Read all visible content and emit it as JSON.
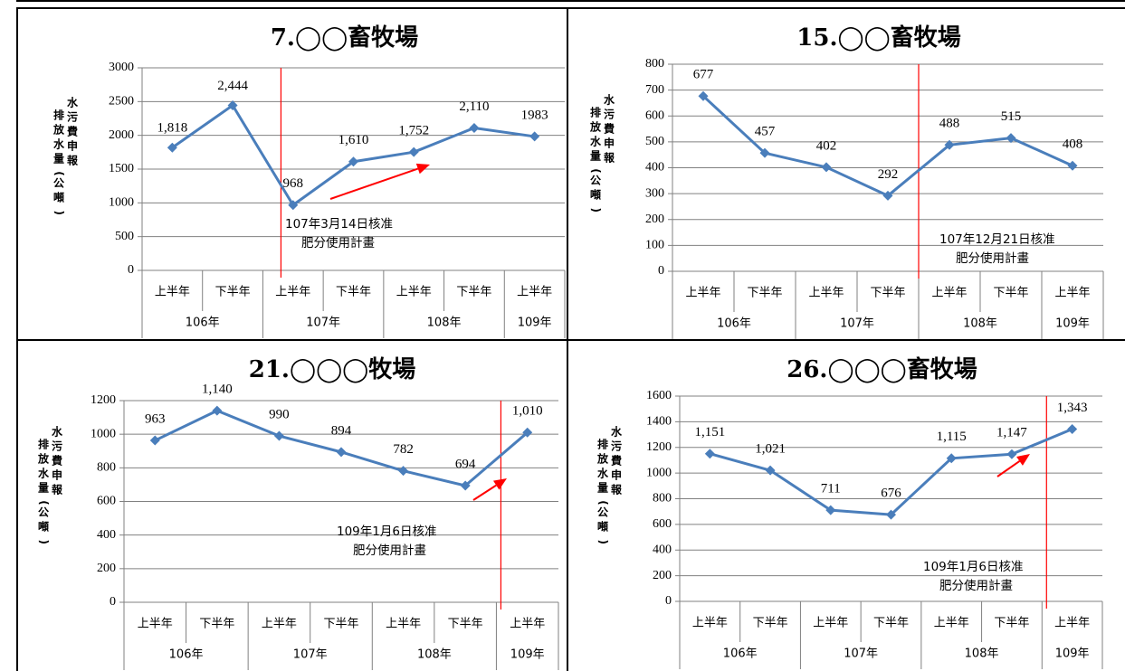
{
  "charts": [
    {
      "title": "7.◯◯畜牧場",
      "ylabel_left": "排放水量(公噸)",
      "ylabel_right": "水污費申報",
      "ylim": [
        0,
        3000
      ],
      "yticks": [
        0,
        500,
        1000,
        1500,
        2000,
        2500,
        3000
      ],
      "categories": [
        "上半年",
        "下半年",
        "上半年",
        "下半年",
        "上半年",
        "下半年",
        "上半年"
      ],
      "groups": [
        {
          "label": "106年",
          "span": 2
        },
        {
          "label": "107年",
          "span": 2
        },
        {
          "label": "108年",
          "span": 2
        },
        {
          "label": "109年",
          "span": 1
        }
      ],
      "values": [
        1818,
        2444,
        968,
        1610,
        1752,
        2110,
        1983
      ],
      "data_labels": [
        "1,818",
        "2,444",
        "968",
        "1,610",
        "1,752",
        "2,110",
        "1983"
      ],
      "annotation_line1": "107年3月14日核准",
      "annotation_line2": "肥分使用計畫"
    },
    {
      "title": "15.◯◯畜牧場",
      "ylabel_left": "排放水量(公噸)",
      "ylabel_right": "水污費申報",
      "ylim": [
        0,
        800
      ],
      "yticks": [
        0,
        100,
        200,
        300,
        400,
        500,
        600,
        700,
        800
      ],
      "categories": [
        "上半年",
        "下半年",
        "上半年",
        "下半年",
        "上半年",
        "下半年",
        "上半年"
      ],
      "groups": [
        {
          "label": "106年",
          "span": 2
        },
        {
          "label": "107年",
          "span": 2
        },
        {
          "label": "108年",
          "span": 2
        },
        {
          "label": "109年",
          "span": 1
        }
      ],
      "values": [
        677,
        457,
        402,
        292,
        488,
        515,
        408
      ],
      "data_labels": [
        "677",
        "457",
        "402",
        "292",
        "488",
        "515",
        "408"
      ],
      "annotation_line1": "107年12月21日核准",
      "annotation_line2": "肥分使用計畫"
    },
    {
      "title": "21.◯◯◯牧場",
      "ylabel_left": "排放水量(公噸)",
      "ylabel_right": "水污費申報",
      "ylim": [
        0,
        1200
      ],
      "yticks": [
        0,
        200,
        400,
        600,
        800,
        1000,
        1200
      ],
      "categories": [
        "上半年",
        "下半年",
        "上半年",
        "下半年",
        "上半年",
        "下半年",
        "上半年"
      ],
      "groups": [
        {
          "label": "106年",
          "span": 2
        },
        {
          "label": "107年",
          "span": 2
        },
        {
          "label": "108年",
          "span": 2
        },
        {
          "label": "109年",
          "span": 1
        }
      ],
      "values": [
        963,
        1140,
        990,
        894,
        782,
        694,
        1010
      ],
      "data_labels": [
        "963",
        "1,140",
        "990",
        "894",
        "782",
        "694",
        "1,010"
      ],
      "annotation_line1": "109年1月6日核准",
      "annotation_line2": "肥分使用計畫"
    },
    {
      "title": "26.◯◯◯畜牧場",
      "ylabel_left": "排放水量(公噸)",
      "ylabel_right": "水污費申報",
      "ylim": [
        0,
        1600
      ],
      "yticks": [
        0,
        200,
        400,
        600,
        800,
        1000,
        1200,
        1400,
        1600
      ],
      "categories": [
        "上半年",
        "下半年",
        "上半年",
        "下半年",
        "上半年",
        "下半年",
        "上半年"
      ],
      "groups": [
        {
          "label": "106年",
          "span": 2
        },
        {
          "label": "107年",
          "span": 2
        },
        {
          "label": "108年",
          "span": 2
        },
        {
          "label": "109年",
          "span": 1
        }
      ],
      "values": [
        1151,
        1021,
        711,
        676,
        1115,
        1147,
        1343
      ],
      "data_labels": [
        "1,151",
        "1,021",
        "711",
        "676",
        "1,115",
        "1,147",
        "1,343"
      ],
      "annotation_line1": "109年1月6日核准",
      "annotation_line2": "肥分使用計畫"
    }
  ],
  "chart_data": [
    {
      "type": "line",
      "title": "7.◯◯畜牧場",
      "ylabel": "排放水量(公噸) 水污費申報",
      "categories": [
        "106年 上半年",
        "106年 下半年",
        "107年 上半年",
        "107年 下半年",
        "108年 上半年",
        "108年 下半年",
        "109年 上半年"
      ],
      "values": [
        1818,
        2444,
        968,
        1610,
        1752,
        2110,
        1983
      ],
      "ylim": [
        0,
        3000
      ],
      "grid": true
    },
    {
      "type": "line",
      "title": "15.◯◯畜牧場",
      "ylabel": "排放水量(公噸) 水污費申報",
      "categories": [
        "106年 上半年",
        "106年 下半年",
        "107年 上半年",
        "107年 下半年",
        "108年 上半年",
        "108年 下半年",
        "109年 上半年"
      ],
      "values": [
        677,
        457,
        402,
        292,
        488,
        515,
        408
      ],
      "ylim": [
        0,
        800
      ],
      "grid": true
    },
    {
      "type": "line",
      "title": "21.◯◯◯牧場",
      "ylabel": "排放水量(公噸) 水污費申報",
      "categories": [
        "106年 上半年",
        "106年 下半年",
        "107年 上半年",
        "107年 下半年",
        "108年 上半年",
        "108年 下半年",
        "109年 上半年"
      ],
      "values": [
        963,
        1140,
        990,
        894,
        782,
        694,
        1010
      ],
      "ylim": [
        0,
        1200
      ],
      "grid": true
    },
    {
      "type": "line",
      "title": "26.◯◯◯畜牧場",
      "ylabel": "排放水量(公噸) 水污費申報",
      "categories": [
        "106年 上半年",
        "106年 下半年",
        "107年 上半年",
        "107年 下半年",
        "108年 上半年",
        "108年 下半年",
        "109年 上半年"
      ],
      "values": [
        1151,
        1021,
        711,
        676,
        1115,
        1147,
        1343
      ],
      "ylim": [
        0,
        1600
      ],
      "grid": true
    }
  ],
  "colors": {
    "series": "#4a7ebb",
    "annotation": "#ff0000",
    "grid": "#808080",
    "border": "#000000"
  }
}
